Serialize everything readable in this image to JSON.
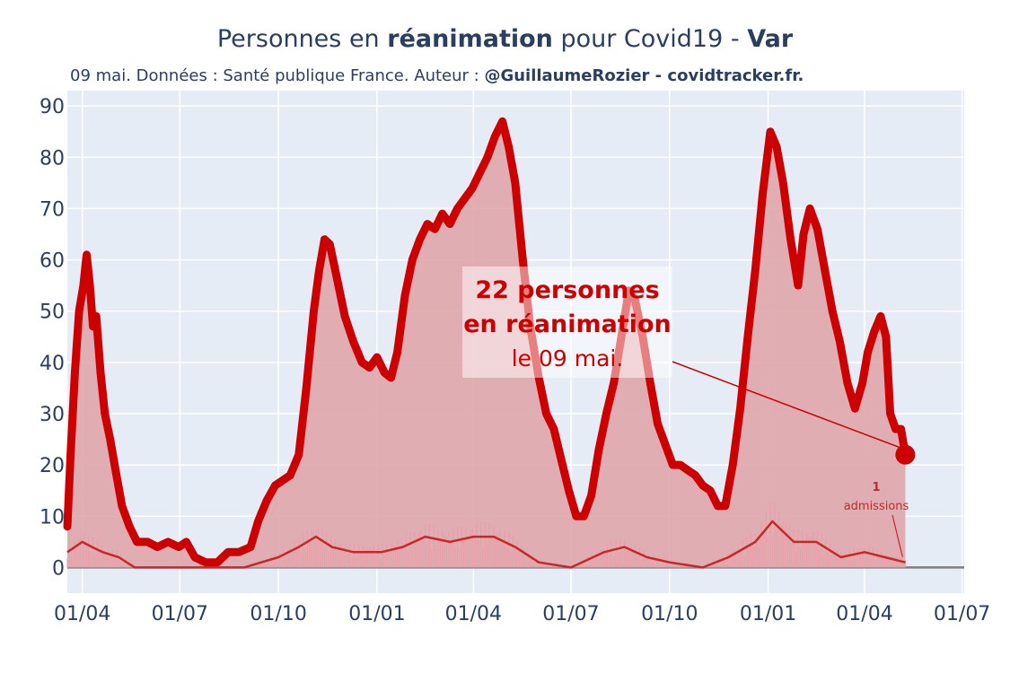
{
  "header": {
    "title_pre": "Personnes en ",
    "title_bold": "réanimation",
    "title_mid": " pour Covid19 - ",
    "title_region": "Var",
    "subtitle_pre": "09 mai. Données : Santé publique France. Auteur : ",
    "subtitle_bold": "@GuillaumeRozier - covidtracker.fr."
  },
  "annotation": {
    "line1": "22 personnes",
    "line2": "en réanimation",
    "line3": "le 09 mai."
  },
  "admissions_annotation": {
    "value": "1",
    "label": "admissions"
  },
  "colors": {
    "line": "#cc0000",
    "fill": "#dfa6ab",
    "plot_bg": "#e5ecf6",
    "admissions_line": "#c62828",
    "text": "#2a3f5f"
  },
  "chart_data": {
    "type": "area",
    "title": "Personnes en réanimation pour Covid19 - Var",
    "x_tick_labels": [
      "01/04",
      "01/07",
      "01/10",
      "01/01",
      "01/04",
      "01/07",
      "01/10",
      "01/01",
      "01/04",
      "01/07"
    ],
    "x_tick_dates": [
      "2020-04-01",
      "2020-07-01",
      "2020-10-01",
      "2021-01-01",
      "2021-04-01",
      "2021-07-01",
      "2021-10-01",
      "2022-01-01",
      "2022-04-01",
      "2022-07-01"
    ],
    "x_range": [
      "2020-03-18",
      "2022-07-03"
    ],
    "y_ticks": [
      0,
      10,
      20,
      30,
      40,
      50,
      60,
      70,
      80,
      90
    ],
    "ylim": [
      -5,
      93
    ],
    "grid": true,
    "series": [
      {
        "name": "réanimation",
        "points": [
          [
            "2020-03-18",
            8
          ],
          [
            "2020-03-21",
            22
          ],
          [
            "2020-03-25",
            38
          ],
          [
            "2020-03-29",
            50
          ],
          [
            "2020-04-02",
            55
          ],
          [
            "2020-04-05",
            61
          ],
          [
            "2020-04-08",
            55
          ],
          [
            "2020-04-11",
            47
          ],
          [
            "2020-04-14",
            49
          ],
          [
            "2020-04-18",
            38
          ],
          [
            "2020-04-22",
            30
          ],
          [
            "2020-04-27",
            25
          ],
          [
            "2020-05-02",
            19
          ],
          [
            "2020-05-08",
            12
          ],
          [
            "2020-05-15",
            8
          ],
          [
            "2020-05-22",
            5
          ],
          [
            "2020-06-01",
            5
          ],
          [
            "2020-06-10",
            4
          ],
          [
            "2020-06-20",
            5
          ],
          [
            "2020-06-30",
            4
          ],
          [
            "2020-07-07",
            5
          ],
          [
            "2020-07-15",
            2
          ],
          [
            "2020-07-25",
            1
          ],
          [
            "2020-08-05",
            1
          ],
          [
            "2020-08-15",
            3
          ],
          [
            "2020-08-25",
            3
          ],
          [
            "2020-09-05",
            4
          ],
          [
            "2020-09-12",
            9
          ],
          [
            "2020-09-20",
            13
          ],
          [
            "2020-09-28",
            16
          ],
          [
            "2020-10-05",
            17
          ],
          [
            "2020-10-12",
            18
          ],
          [
            "2020-10-20",
            22
          ],
          [
            "2020-10-27",
            35
          ],
          [
            "2020-11-03",
            50
          ],
          [
            "2020-11-08",
            58
          ],
          [
            "2020-11-13",
            64
          ],
          [
            "2020-11-18",
            63
          ],
          [
            "2020-11-25",
            56
          ],
          [
            "2020-12-02",
            49
          ],
          [
            "2020-12-10",
            44
          ],
          [
            "2020-12-18",
            40
          ],
          [
            "2020-12-25",
            39
          ],
          [
            "2021-01-01",
            41
          ],
          [
            "2021-01-08",
            38
          ],
          [
            "2021-01-14",
            37
          ],
          [
            "2021-01-20",
            42
          ],
          [
            "2021-01-27",
            53
          ],
          [
            "2021-02-03",
            60
          ],
          [
            "2021-02-10",
            64
          ],
          [
            "2021-02-17",
            67
          ],
          [
            "2021-02-24",
            66
          ],
          [
            "2021-03-03",
            69
          ],
          [
            "2021-03-10",
            67
          ],
          [
            "2021-03-17",
            70
          ],
          [
            "2021-03-24",
            72
          ],
          [
            "2021-03-31",
            74
          ],
          [
            "2021-04-07",
            77
          ],
          [
            "2021-04-14",
            80
          ],
          [
            "2021-04-21",
            84
          ],
          [
            "2021-04-28",
            87
          ],
          [
            "2021-05-04",
            82
          ],
          [
            "2021-05-10",
            75
          ],
          [
            "2021-05-17",
            60
          ],
          [
            "2021-05-24",
            47
          ],
          [
            "2021-06-01",
            37
          ],
          [
            "2021-06-08",
            30
          ],
          [
            "2021-06-15",
            27
          ],
          [
            "2021-06-22",
            21
          ],
          [
            "2021-06-29",
            15
          ],
          [
            "2021-07-06",
            10
          ],
          [
            "2021-07-13",
            10
          ],
          [
            "2021-07-20",
            14
          ],
          [
            "2021-07-27",
            23
          ],
          [
            "2021-08-03",
            30
          ],
          [
            "2021-08-10",
            36
          ],
          [
            "2021-08-17",
            45
          ],
          [
            "2021-08-24",
            54
          ],
          [
            "2021-08-30",
            52
          ],
          [
            "2021-09-06",
            45
          ],
          [
            "2021-09-13",
            36
          ],
          [
            "2021-09-20",
            28
          ],
          [
            "2021-09-27",
            24
          ],
          [
            "2021-10-04",
            20
          ],
          [
            "2021-10-11",
            20
          ],
          [
            "2021-10-18",
            19
          ],
          [
            "2021-10-25",
            18
          ],
          [
            "2021-11-01",
            16
          ],
          [
            "2021-11-08",
            15
          ],
          [
            "2021-11-15",
            12
          ],
          [
            "2021-11-22",
            12
          ],
          [
            "2021-11-29",
            20
          ],
          [
            "2021-12-06",
            31
          ],
          [
            "2021-12-13",
            45
          ],
          [
            "2021-12-20",
            58
          ],
          [
            "2021-12-27",
            73
          ],
          [
            "2022-01-03",
            85
          ],
          [
            "2022-01-09",
            82
          ],
          [
            "2022-01-15",
            75
          ],
          [
            "2022-01-22",
            64
          ],
          [
            "2022-01-29",
            55
          ],
          [
            "2022-02-03",
            65
          ],
          [
            "2022-02-09",
            70
          ],
          [
            "2022-02-16",
            66
          ],
          [
            "2022-02-23",
            58
          ],
          [
            "2022-03-02",
            50
          ],
          [
            "2022-03-09",
            44
          ],
          [
            "2022-03-16",
            36
          ],
          [
            "2022-03-23",
            31
          ],
          [
            "2022-03-30",
            36
          ],
          [
            "2022-04-04",
            42
          ],
          [
            "2022-04-10",
            46
          ],
          [
            "2022-04-16",
            49
          ],
          [
            "2022-04-21",
            45
          ],
          [
            "2022-04-25",
            30
          ],
          [
            "2022-04-30",
            27
          ],
          [
            "2022-05-05",
            27
          ],
          [
            "2022-05-09",
            22
          ]
        ]
      },
      {
        "name": "admissions",
        "points": [
          [
            "2020-03-18",
            3
          ],
          [
            "2020-04-01",
            5
          ],
          [
            "2020-04-10",
            4
          ],
          [
            "2020-04-20",
            3
          ],
          [
            "2020-05-05",
            2
          ],
          [
            "2020-05-20",
            0
          ],
          [
            "2020-08-30",
            0
          ],
          [
            "2020-09-15",
            1
          ],
          [
            "2020-10-01",
            2
          ],
          [
            "2020-10-20",
            4
          ],
          [
            "2020-11-05",
            6
          ],
          [
            "2020-11-20",
            4
          ],
          [
            "2020-12-10",
            3
          ],
          [
            "2021-01-05",
            3
          ],
          [
            "2021-01-25",
            4
          ],
          [
            "2021-02-15",
            6
          ],
          [
            "2021-03-10",
            5
          ],
          [
            "2021-04-01",
            6
          ],
          [
            "2021-04-20",
            6
          ],
          [
            "2021-05-10",
            4
          ],
          [
            "2021-06-01",
            1
          ],
          [
            "2021-07-01",
            0
          ],
          [
            "2021-08-01",
            3
          ],
          [
            "2021-08-20",
            4
          ],
          [
            "2021-09-10",
            2
          ],
          [
            "2021-10-01",
            1
          ],
          [
            "2021-11-01",
            0
          ],
          [
            "2021-11-25",
            2
          ],
          [
            "2021-12-20",
            5
          ],
          [
            "2022-01-05",
            9
          ],
          [
            "2022-01-25",
            5
          ],
          [
            "2022-02-15",
            5
          ],
          [
            "2022-03-10",
            2
          ],
          [
            "2022-04-01",
            3
          ],
          [
            "2022-04-20",
            2
          ],
          [
            "2022-05-09",
            1
          ]
        ]
      }
    ],
    "last_point": {
      "date": "2022-05-09",
      "value": 22
    },
    "admissions_last": 1
  }
}
